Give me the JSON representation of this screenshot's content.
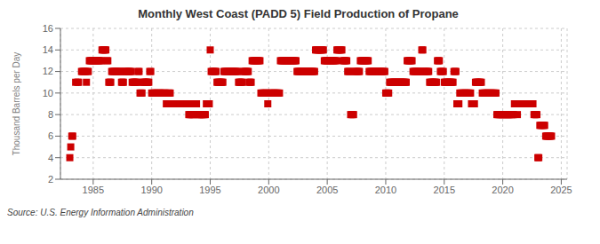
{
  "chart_data": {
    "type": "scatter",
    "title": "Monthly West Coast (PADD 5) Field Production of Propane",
    "ylabel": "Thousand Barrels per Day",
    "annotations": [
      "Source: U.S. Energy Information Administration"
    ],
    "color": "#cc0000",
    "marker": "square",
    "grid": true,
    "xlim": [
      1982.2,
      2025.5
    ],
    "ylim": [
      2,
      16
    ],
    "xticks": [
      1985,
      1990,
      1995,
      2000,
      2005,
      2010,
      2015,
      2020,
      2025
    ],
    "yticks": [
      2,
      4,
      6,
      8,
      10,
      12,
      14,
      16
    ],
    "x": [
      1983.0,
      1983.08,
      1983.17,
      1983.25,
      1983.5,
      1983.67,
      1983.75,
      1984.0,
      1984.08,
      1984.17,
      1984.25,
      1984.33,
      1984.42,
      1984.5,
      1984.58,
      1984.67,
      1984.75,
      1984.83,
      1984.92,
      1985.0,
      1985.08,
      1985.17,
      1985.25,
      1985.33,
      1985.42,
      1985.5,
      1985.58,
      1985.67,
      1985.75,
      1985.83,
      1985.92,
      1986.0,
      1986.08,
      1986.17,
      1986.25,
      1986.33,
      1986.42,
      1986.5,
      1986.58,
      1986.67,
      1986.75,
      1986.83,
      1986.92,
      1987.0,
      1987.08,
      1987.17,
      1987.25,
      1987.33,
      1987.42,
      1987.5,
      1987.58,
      1987.67,
      1987.75,
      1987.83,
      1987.92,
      1988.0,
      1988.08,
      1988.17,
      1988.25,
      1988.33,
      1988.42,
      1988.5,
      1988.58,
      1988.67,
      1988.75,
      1988.83,
      1988.92,
      1989.0,
      1989.08,
      1989.17,
      1989.25,
      1989.33,
      1989.42,
      1989.5,
      1989.58,
      1989.67,
      1989.75,
      1989.83,
      1989.92,
      1990.0,
      1990.08,
      1990.17,
      1990.25,
      1990.33,
      1990.42,
      1990.5,
      1990.58,
      1990.67,
      1990.75,
      1990.83,
      1990.92,
      1991.0,
      1991.08,
      1991.17,
      1991.25,
      1991.33,
      1991.42,
      1991.5,
      1991.58,
      1991.67,
      1991.75,
      1991.83,
      1991.92,
      1992.0,
      1992.08,
      1992.17,
      1992.25,
      1992.33,
      1992.42,
      1992.5,
      1992.58,
      1992.67,
      1992.75,
      1992.83,
      1992.92,
      1993.0,
      1993.08,
      1993.17,
      1993.25,
      1993.33,
      1993.42,
      1993.5,
      1993.58,
      1993.67,
      1993.75,
      1993.83,
      1993.92,
      1994.0,
      1994.08,
      1994.17,
      1994.25,
      1994.33,
      1994.42,
      1994.5,
      1994.58,
      1994.67,
      1994.75,
      1994.83,
      1994.92,
      1995.0,
      1995.08,
      1995.17,
      1995.25,
      1995.33,
      1995.42,
      1995.5,
      1995.58,
      1995.67,
      1995.75,
      1995.83,
      1995.92,
      1996.0,
      1996.08,
      1996.17,
      1996.25,
      1996.33,
      1996.42,
      1996.5,
      1996.58,
      1996.67,
      1996.75,
      1996.83,
      1996.92,
      1997.0,
      1997.08,
      1997.17,
      1997.25,
      1997.33,
      1997.42,
      1997.5,
      1997.58,
      1997.67,
      1997.75,
      1997.83,
      1997.92,
      1998.0,
      1998.08,
      1998.17,
      1998.25,
      1998.33,
      1998.42,
      1998.5,
      1998.58,
      1998.67,
      1998.75,
      1998.83,
      1998.92,
      1999.0,
      1999.08,
      1999.17,
      1999.25,
      1999.33,
      1999.42,
      1999.5,
      1999.58,
      1999.67,
      1999.75,
      1999.83,
      1999.92,
      2000.0,
      2000.08,
      2000.17,
      2000.25,
      2000.33,
      2000.42,
      2000.5,
      2000.58,
      2000.67,
      2000.75,
      2000.83,
      2000.92,
      2001.0,
      2001.08,
      2001.17,
      2001.25,
      2001.33,
      2001.42,
      2001.5,
      2001.58,
      2001.67,
      2001.75,
      2001.83,
      2001.92,
      2002.0,
      2002.08,
      2002.17,
      2002.25,
      2002.33,
      2002.42,
      2002.5,
      2002.58,
      2002.67,
      2002.75,
      2002.83,
      2002.92,
      2003.0,
      2003.08,
      2003.17,
      2003.25,
      2003.33,
      2003.42,
      2003.5,
      2003.58,
      2003.67,
      2003.75,
      2003.83,
      2003.92,
      2004.0,
      2004.08,
      2004.17,
      2004.25,
      2004.33,
      2004.42,
      2004.5,
      2004.58,
      2004.67,
      2004.75,
      2004.83,
      2004.92,
      2005.0,
      2005.08,
      2005.17,
      2005.25,
      2005.33,
      2005.42,
      2005.5,
      2005.58,
      2005.67,
      2005.75,
      2005.83,
      2005.92,
      2006.0,
      2006.08,
      2006.17,
      2006.25,
      2006.33,
      2006.42,
      2006.5,
      2006.58,
      2006.67,
      2006.75,
      2006.83,
      2006.92,
      2007.0,
      2007.08,
      2007.17,
      2007.25,
      2007.33,
      2007.42,
      2007.5,
      2007.58,
      2007.67,
      2007.75,
      2007.83,
      2007.92,
      2008.0,
      2008.08,
      2008.17,
      2008.25,
      2008.33,
      2008.42,
      2008.5,
      2008.58,
      2008.67,
      2008.75,
      2008.83,
      2008.92,
      2009.0,
      2009.08,
      2009.17,
      2009.25,
      2009.33,
      2009.42,
      2009.5,
      2009.58,
      2009.67,
      2009.75,
      2009.83,
      2009.92,
      2010.0,
      2010.08,
      2010.17,
      2010.25,
      2010.33,
      2010.42,
      2010.5,
      2010.58,
      2010.67,
      2010.75,
      2010.83,
      2010.92,
      2011.0,
      2011.08,
      2011.17,
      2011.25,
      2011.33,
      2011.42,
      2011.5,
      2011.58,
      2011.67,
      2011.75,
      2011.83,
      2011.92,
      2012.0,
      2012.08,
      2012.17,
      2012.25,
      2012.33,
      2012.42,
      2012.5,
      2012.58,
      2012.67,
      2012.75,
      2012.83,
      2012.92,
      2013.0,
      2013.08,
      2013.17,
      2013.25,
      2013.33,
      2013.42,
      2013.5,
      2013.58,
      2013.67,
      2013.75,
      2013.83,
      2013.92,
      2014.0,
      2014.08,
      2014.17,
      2014.25,
      2014.33,
      2014.42,
      2014.5,
      2014.58,
      2014.67,
      2014.75,
      2014.83,
      2014.92,
      2015.0,
      2015.08,
      2015.17,
      2015.25,
      2015.33,
      2015.42,
      2015.5,
      2015.58,
      2015.67,
      2015.75,
      2015.83,
      2015.92,
      2016.0,
      2016.08,
      2016.17,
      2016.25,
      2016.33,
      2016.42,
      2016.5,
      2016.58,
      2016.67,
      2016.75,
      2016.83,
      2016.92,
      2017.0,
      2017.08,
      2017.17,
      2017.25,
      2017.33,
      2017.42,
      2017.5,
      2017.58,
      2017.67,
      2017.75,
      2017.83,
      2017.92,
      2018.0,
      2018.08,
      2018.17,
      2018.25,
      2018.33,
      2018.42,
      2018.5,
      2018.58,
      2018.67,
      2018.75,
      2018.83,
      2018.92,
      2019.0,
      2019.08,
      2019.17,
      2019.25,
      2019.33,
      2019.42,
      2019.5,
      2019.58,
      2019.67,
      2019.75,
      2019.83,
      2019.92,
      2020.0,
      2020.08,
      2020.17,
      2020.25,
      2020.33,
      2020.42,
      2020.5,
      2020.58,
      2020.67,
      2020.75,
      2020.83,
      2020.92,
      2021.0,
      2021.08,
      2021.17,
      2021.25,
      2021.33,
      2021.42,
      2021.5,
      2021.58,
      2021.67,
      2021.75,
      2021.83,
      2021.92,
      2022.0,
      2022.08,
      2022.17,
      2022.25,
      2022.33,
      2022.42,
      2022.5,
      2022.58,
      2022.67,
      2022.75,
      2022.83,
      2022.92,
      2023.0,
      2023.08,
      2023.17,
      2023.25,
      2023.33,
      2023.42,
      2023.5,
      2023.58,
      2023.67,
      2023.75,
      2023.83,
      2023.92,
      2024.0,
      2024.08,
      2024.17
    ],
    "values": [
      4,
      5,
      6,
      6,
      11,
      11,
      11,
      12,
      12,
      12,
      12,
      12,
      11,
      12,
      12,
      13,
      13,
      13,
      13,
      13,
      13,
      13,
      13,
      13,
      13,
      13,
      13,
      13,
      14,
      14,
      14,
      14,
      14,
      13,
      13,
      11,
      11,
      11,
      12,
      12,
      12,
      12,
      12,
      12,
      12,
      12,
      12,
      12,
      11,
      11,
      11,
      12,
      12,
      12,
      12,
      12,
      12,
      12,
      12,
      11,
      11,
      11,
      11,
      11,
      11,
      12,
      12,
      10,
      10,
      10,
      11,
      11,
      11,
      11,
      11,
      11,
      11,
      12,
      12,
      10,
      10,
      10,
      10,
      10,
      10,
      10,
      10,
      10,
      10,
      10,
      10,
      10,
      10,
      10,
      9,
      9,
      10,
      10,
      10,
      9,
      9,
      9,
      9,
      9,
      9,
      9,
      9,
      9,
      9,
      9,
      9,
      9,
      9,
      9,
      9,
      9,
      9,
      8,
      8,
      8,
      8,
      8,
      8,
      9,
      9,
      9,
      8,
      8,
      8,
      8,
      8,
      8,
      8,
      8,
      8,
      9,
      9,
      9,
      9,
      14,
      12,
      12,
      12,
      12,
      12,
      12,
      11,
      11,
      11,
      11,
      11,
      11,
      11,
      12,
      12,
      12,
      12,
      12,
      12,
      12,
      12,
      12,
      12,
      12,
      12,
      12,
      12,
      12,
      11,
      11,
      11,
      11,
      11,
      12,
      12,
      12,
      12,
      12,
      12,
      11,
      11,
      11,
      13,
      13,
      13,
      13,
      13,
      13,
      13,
      13,
      13,
      10,
      10,
      10,
      10,
      10,
      10,
      10,
      9,
      10,
      10,
      10,
      10,
      10,
      10,
      10,
      10,
      10,
      10,
      10,
      10,
      13,
      13,
      13,
      13,
      13,
      13,
      13,
      13,
      13,
      13,
      13,
      13,
      13,
      13,
      13,
      13,
      13,
      12,
      12,
      12,
      12,
      12,
      12,
      12,
      12,
      12,
      12,
      12,
      12,
      12,
      12,
      12,
      12,
      12,
      12,
      12,
      14,
      14,
      14,
      14,
      14,
      14,
      14,
      14,
      14,
      13,
      13,
      13,
      13,
      13,
      13,
      13,
      13,
      13,
      13,
      13,
      13,
      13,
      14,
      14,
      14,
      14,
      14,
      14,
      13,
      13,
      13,
      13,
      13,
      12,
      12,
      12,
      8,
      8,
      8,
      8,
      12,
      12,
      12,
      12,
      12,
      12,
      13,
      13,
      13,
      13,
      13,
      13,
      13,
      13,
      13,
      12,
      12,
      12,
      12,
      12,
      12,
      12,
      12,
      12,
      12,
      12,
      12,
      12,
      12,
      12,
      12,
      12,
      10,
      10,
      10,
      10,
      11,
      11,
      11,
      11,
      11,
      11,
      11,
      11,
      11,
      11,
      11,
      11,
      11,
      11,
      11,
      11,
      11,
      11,
      13,
      13,
      13,
      13,
      13,
      13,
      12,
      12,
      12,
      12,
      12,
      12,
      12,
      12,
      12,
      14,
      14,
      12,
      12,
      12,
      12,
      12,
      12,
      11,
      11,
      11,
      11,
      11,
      11,
      11,
      11,
      13,
      13,
      13,
      12,
      12,
      12,
      12,
      11,
      11,
      11,
      11,
      11,
      11,
      11,
      11,
      11,
      11,
      12,
      12,
      12,
      9,
      9,
      9,
      10,
      10,
      10,
      10,
      10,
      10,
      10,
      10,
      10,
      10,
      10,
      10,
      9,
      9,
      9,
      9,
      11,
      11,
      11,
      11,
      11,
      11,
      11,
      10,
      10,
      10,
      10,
      10,
      10,
      10,
      10,
      10,
      10,
      10,
      10,
      10,
      10,
      10,
      8,
      8,
      8,
      8,
      8,
      8,
      8,
      8,
      8,
      8,
      8,
      8,
      8,
      8,
      8,
      8,
      8,
      8,
      9,
      9,
      9,
      8,
      9,
      9,
      9,
      9,
      9,
      9,
      9,
      9,
      9,
      9,
      9,
      9,
      9,
      9,
      9,
      9,
      8,
      8,
      8,
      8,
      4,
      4,
      7,
      7,
      7,
      7,
      7,
      7,
      6,
      6,
      6,
      6,
      6,
      6,
      6
    ]
  }
}
